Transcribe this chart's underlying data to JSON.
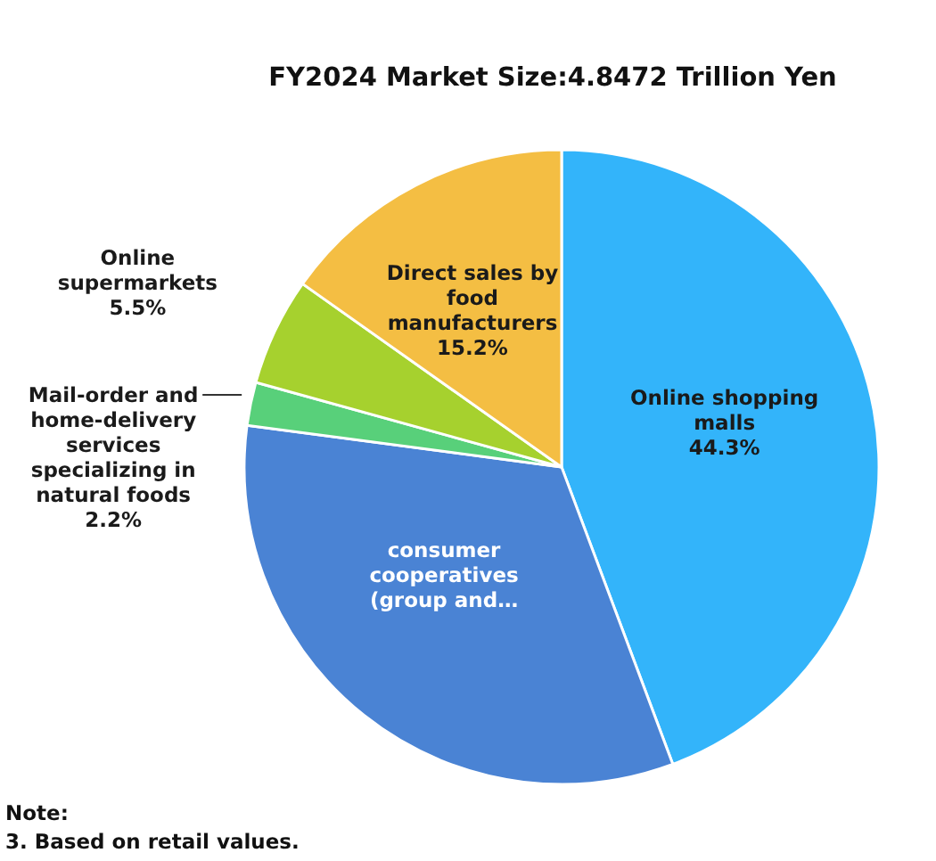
{
  "chart_data": {
    "type": "pie",
    "title": "FY2024 Market Size:4.8472 Trillion Yen",
    "categories": [
      "Online shopping malls",
      "consumer cooperatives (group and…",
      "Mail-order and home-delivery services specializing in natural foods",
      "Online supermarkets",
      "Direct sales by food manufacturers"
    ],
    "values": [
      44.3,
      32.8,
      2.2,
      5.5,
      15.2
    ],
    "value_labels": [
      "44.3%",
      null,
      "2.2%",
      "5.5%",
      "15.2%"
    ],
    "colors": [
      "#33b4fa",
      "#4a83d4",
      "#58d07a",
      "#a6d12e",
      "#f4be43"
    ],
    "annotations": [
      "Note:",
      "3. Based on retail values."
    ]
  }
}
